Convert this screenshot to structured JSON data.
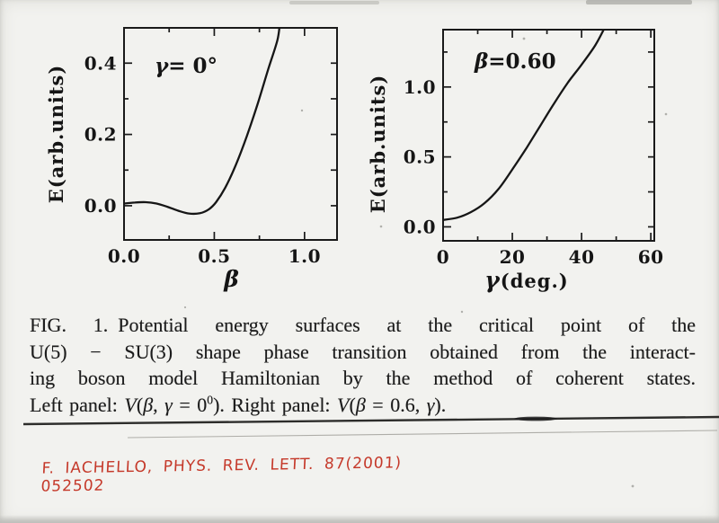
{
  "reference_note": {
    "text": "F. IACHELLO, PHYS. REV. LETT. 87(2001) 052502",
    "color": "#c5392a"
  },
  "caption": {
    "lines": [
      [
        {
          "t": "FIG. 1. Potential energy surfaces at the critical point of the"
        }
      ],
      [
        {
          "t": "U(5) − SU(3) shape phase transition obtained from the interact-"
        }
      ],
      [
        {
          "t": "ing boson model Hamiltonian by the method of coherent states."
        }
      ],
      [
        {
          "t": "Left panel: "
        },
        {
          "t": "V",
          "i": 1
        },
        {
          "t": "("
        },
        {
          "t": "β",
          "i": 1
        },
        {
          "t": ", "
        },
        {
          "t": "γ",
          "i": 1
        },
        {
          "t": " = 0"
        },
        {
          "t": "0",
          "sup": 1
        },
        {
          "t": "). Right panel: "
        },
        {
          "t": "V",
          "i": 1
        },
        {
          "t": "("
        },
        {
          "t": "β",
          "i": 1
        },
        {
          "t": " = 0.6, "
        },
        {
          "t": "γ",
          "i": 1
        },
        {
          "t": ")."
        }
      ]
    ]
  },
  "chart_data": [
    {
      "type": "line",
      "panel": "left",
      "ylabel": "E(arb.units)",
      "xlabel": "β",
      "annotation_parts": {
        "sym": "γ",
        "rest": "= 0°"
      },
      "xlim": [
        0,
        1.18
      ],
      "ylim": [
        -0.096,
        0.499
      ],
      "grid": false,
      "xticks": {
        "values": [
          0,
          0.5,
          1.0
        ],
        "labels": [
          "0.0",
          "0.5",
          "1.0"
        ],
        "minor": [
          0.25,
          0.75
        ]
      },
      "yticks": {
        "values": [
          0,
          0.2,
          0.4
        ],
        "labels": [
          "0.0",
          "0.2",
          "0.4"
        ],
        "minor": [
          0.1,
          0.3
        ],
        "right": [
          0,
          0.1,
          0.2,
          0.3,
          0.4
        ]
      },
      "series": [
        {
          "name": "V(β, γ = 0°)",
          "points": [
            [
              0,
              0.006
            ],
            [
              0.06,
              0.009
            ],
            [
              0.12,
              0.01
            ],
            [
              0.18,
              0.006
            ],
            [
              0.24,
              -0.003
            ],
            [
              0.3,
              -0.014
            ],
            [
              0.36,
              -0.022
            ],
            [
              0.42,
              -0.021
            ],
            [
              0.47,
              -0.01
            ],
            [
              0.51,
              0.01
            ],
            [
              0.56,
              0.05
            ],
            [
              0.62,
              0.115
            ],
            [
              0.68,
              0.195
            ],
            [
              0.74,
              0.285
            ],
            [
              0.8,
              0.385
            ],
            [
              0.85,
              0.465
            ],
            [
              0.865,
              0.52
            ]
          ]
        }
      ]
    },
    {
      "type": "line",
      "panel": "right",
      "ylabel": "E(arb.units)",
      "xlabel_parts": {
        "sym": "γ",
        "rest": "(deg.)"
      },
      "annotation_parts": {
        "sym": "β",
        "rest": "=0.60"
      },
      "xlim": [
        0,
        61
      ],
      "ylim": [
        -0.1,
        1.41
      ],
      "grid": false,
      "xticks": {
        "values": [
          0,
          20,
          40,
          60
        ],
        "labels": [
          "0",
          "20",
          "40",
          "60"
        ],
        "minor": [
          10,
          30,
          50
        ]
      },
      "yticks": {
        "values": [
          0,
          0.5,
          1.0
        ],
        "labels": [
          "0.0",
          "0.5",
          "1.0"
        ],
        "minor": [
          0.25,
          0.75,
          1.25
        ],
        "right": [
          0,
          0.25,
          0.5,
          0.75,
          1.0,
          1.25
        ]
      },
      "series": [
        {
          "name": "V(β = 0.6, γ)",
          "points": [
            [
              0,
              0.05
            ],
            [
              4,
              0.065
            ],
            [
              8,
              0.105
            ],
            [
              12,
              0.17
            ],
            [
              16,
              0.27
            ],
            [
              20,
              0.41
            ],
            [
              24,
              0.56
            ],
            [
              28,
              0.72
            ],
            [
              32,
              0.88
            ],
            [
              36,
              1.03
            ],
            [
              40,
              1.16
            ],
            [
              44,
              1.3
            ],
            [
              47,
              1.44
            ]
          ]
        }
      ]
    }
  ]
}
